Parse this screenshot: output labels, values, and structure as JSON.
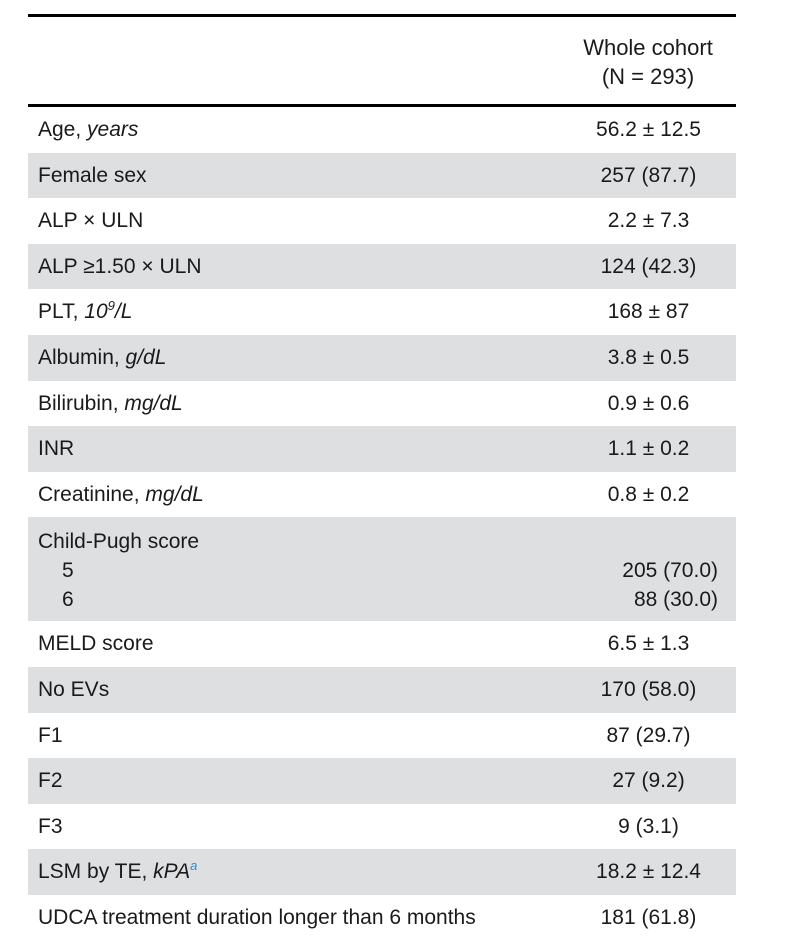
{
  "header": {
    "col_line1": "Whole cohort",
    "col_line2": "(N = 293)"
  },
  "rows": [
    {
      "label": "Age, ",
      "unit": "years",
      "value": "56.2 ± 12.5"
    },
    {
      "label": "Female sex",
      "value": "257 (87.7)"
    },
    {
      "label": "ALP × ULN",
      "value": "2.2 ± 7.3"
    },
    {
      "label": "ALP ≥1.50 × ULN",
      "value": "124 (42.3)"
    },
    {
      "label": "PLT, ",
      "unit_pre": "10",
      "unit_sup": "9",
      "unit_post": "/L",
      "value": "168 ± 87"
    },
    {
      "label": "Albumin, ",
      "unit": "g/dL",
      "value": "3.8 ± 0.5"
    },
    {
      "label": "Bilirubin, ",
      "unit": "mg/dL",
      "value": "0.9 ± 0.6"
    },
    {
      "label": "INR",
      "value": "1.1 ± 0.2"
    },
    {
      "label": "Creatinine, ",
      "unit": "mg/dL",
      "value": "0.8 ± 0.2"
    },
    {
      "label": "Child-Pugh score",
      "sub": [
        {
          "label": "5",
          "value": "205 (70.0)"
        },
        {
          "label": "6",
          "value": "88 (30.0)"
        }
      ]
    },
    {
      "label": "MELD score",
      "value": "6.5 ± 1.3"
    },
    {
      "label": "No EVs",
      "value": "170 (58.0)"
    },
    {
      "label": "F1",
      "value": "87 (29.7)"
    },
    {
      "label": "F2",
      "value": "27 (9.2)"
    },
    {
      "label": "F3",
      "value": "9 (3.1)"
    },
    {
      "label": "LSM by TE, ",
      "unit": "kPA",
      "footnote": "a",
      "value": "18.2 ± 12.4"
    },
    {
      "label": "UDCA treatment duration longer than 6 months",
      "value": "181 (61.8)"
    }
  ],
  "colors": {
    "shade": "#dedfe0",
    "rule": "#000000",
    "footnote": "#2a8fd0"
  }
}
